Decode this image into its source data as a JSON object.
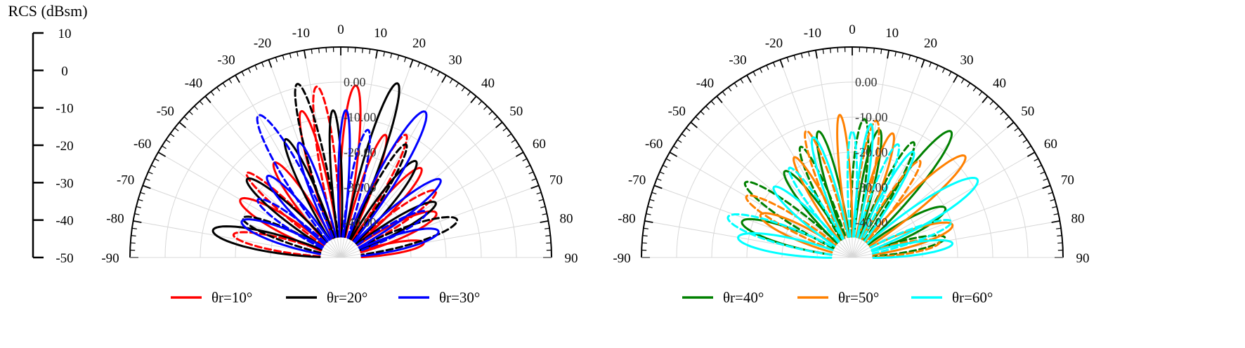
{
  "rcs_axis": {
    "title": "RCS (dBsm)",
    "ticks": [
      "10",
      "0",
      "-10",
      "-20",
      "-30",
      "-40",
      "-50"
    ],
    "range": [
      -50,
      10
    ]
  },
  "chart_data": [
    {
      "type": "polar-line",
      "angle_range_deg": [
        -90,
        90
      ],
      "angle_tick_labels": [
        "-90",
        "-80",
        "-70",
        "-60",
        "-50",
        "-40",
        "-30",
        "-20",
        "-10",
        "0",
        "10",
        "20",
        "30",
        "40",
        "50",
        "60",
        "70",
        "80",
        "90"
      ],
      "radial_range_dbsm": [
        -50,
        10
      ],
      "radial_tick_labels": [
        "0.00",
        "-10.00",
        "-20.00",
        "-30.00",
        "-40.00"
      ],
      "grid": true,
      "legend_position": "bottom",
      "series": [
        {
          "name": "θr=10°",
          "color": "#ff0000",
          "reflection_angle_deg": 10
        },
        {
          "name": "θr=20°",
          "color": "#000000",
          "reflection_angle_deg": 20
        },
        {
          "name": "θr=30°",
          "color": "#0000ff",
          "reflection_angle_deg": 30
        }
      ]
    },
    {
      "type": "polar-line",
      "angle_range_deg": [
        -90,
        90
      ],
      "angle_tick_labels": [
        "-90",
        "-80",
        "-70",
        "-60",
        "-50",
        "-40",
        "-30",
        "-20",
        "-10",
        "0",
        "10",
        "20",
        "30",
        "40",
        "50",
        "60",
        "70",
        "80",
        "90"
      ],
      "radial_range_dbsm": [
        -50,
        10
      ],
      "radial_tick_labels": [
        "0.00",
        "-10.00",
        "-20.00",
        "-30.00",
        "-40.00"
      ],
      "grid": true,
      "legend_position": "bottom",
      "series": [
        {
          "name": "θr=40°",
          "color": "#008000",
          "reflection_angle_deg": 40
        },
        {
          "name": "θr=50°",
          "color": "#ff8000",
          "reflection_angle_deg": 50
        },
        {
          "name": "θr=60°",
          "color": "#00ffff",
          "reflection_angle_deg": 60
        }
      ]
    }
  ]
}
